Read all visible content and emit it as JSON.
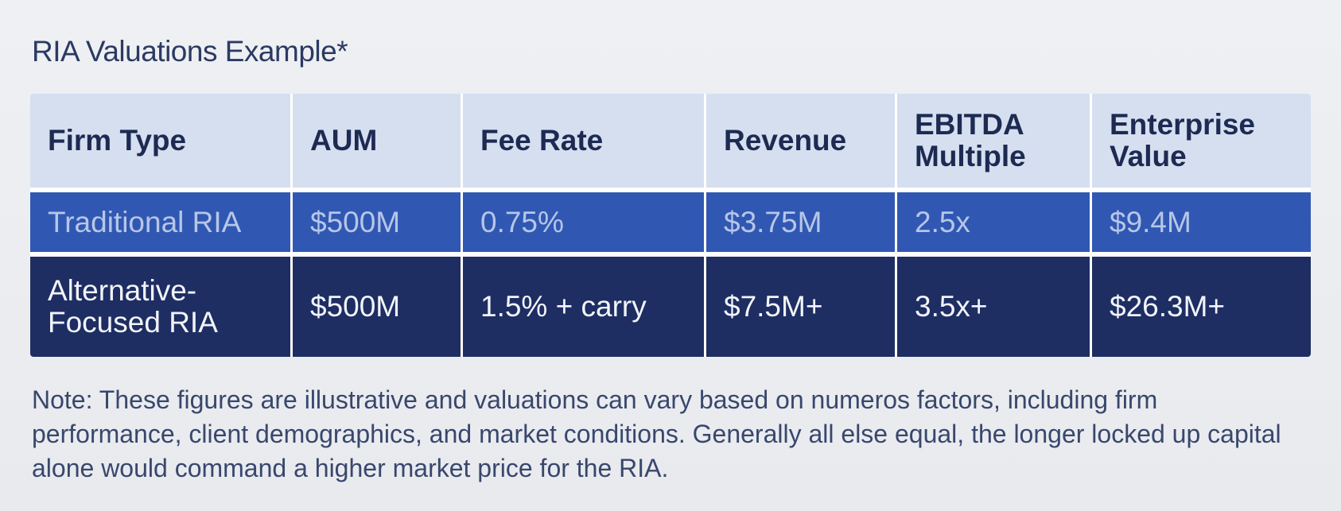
{
  "title": "RIA Valuations Example*",
  "table": {
    "headers": [
      "Firm Type",
      "AUM",
      "Fee Rate",
      "Revenue",
      "EBITDA Multiple",
      "Enterprise Value"
    ],
    "rows": [
      [
        "Traditional RIA",
        "$500M",
        "0.75%",
        "$3.75M",
        "2.5x",
        "$9.4M"
      ],
      [
        "Alternative-Focused RIA",
        "$500M",
        "1.5% + carry",
        "$7.5M+",
        "3.5x+",
        "$26.3M+"
      ]
    ]
  },
  "note": "Note: These figures are illustrative and valuations can vary based on numeros factors, including firm performance, client demographics, and market conditions. Generally all else equal, the longer locked up capital alone would command a higher market price for the RIA.",
  "colors": {
    "header_bg": "#d5dff0",
    "row1_bg": "#3058b3",
    "row2_bg": "#1e2e63",
    "text_dark": "#1d2a52"
  }
}
